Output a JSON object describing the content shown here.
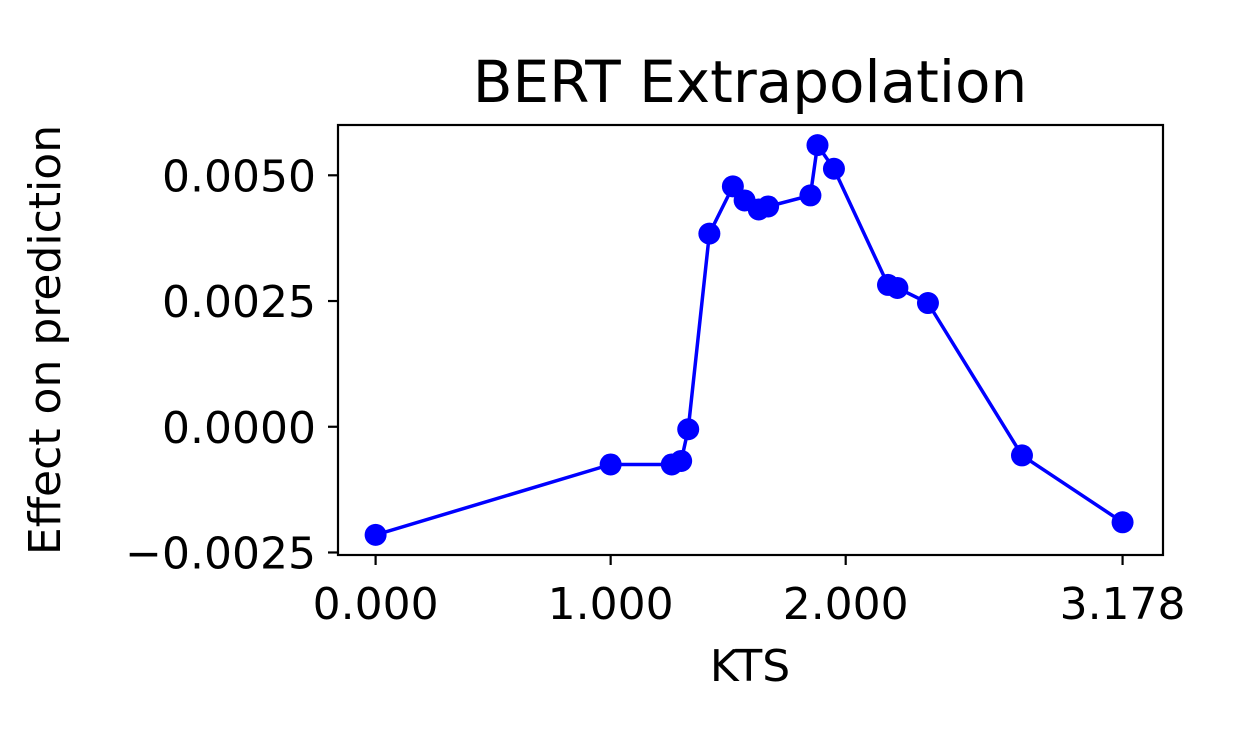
{
  "chart_data": {
    "type": "line",
    "title": "BERT Extrapolation",
    "xlabel": "KTS",
    "ylabel": "Effect on prediction",
    "xlim": [
      -0.16,
      3.35
    ],
    "ylim": [
      -0.00255,
      0.006
    ],
    "xticks": [
      0.0,
      1.0,
      2.0,
      3.178
    ],
    "xtick_labels": [
      "0.000",
      "1.000",
      "2.000",
      "3.178"
    ],
    "yticks": [
      -0.0025,
      0.0,
      0.0025,
      0.005
    ],
    "ytick_labels": [
      "−0.0025",
      "0.0000",
      "0.0025",
      "0.0050"
    ],
    "grid": false,
    "series": [
      {
        "color": "#0000ff",
        "marker": "circle",
        "x": [
          0.0,
          1.0,
          1.26,
          1.3,
          1.33,
          1.42,
          1.52,
          1.57,
          1.63,
          1.67,
          1.85,
          1.88,
          1.95,
          2.18,
          2.22,
          2.35,
          2.75,
          3.178
        ],
        "y": [
          -0.00215,
          -0.00075,
          -0.00075,
          -0.00068,
          -5e-05,
          0.00384,
          0.00478,
          0.0045,
          0.00432,
          0.00438,
          0.0046,
          0.0056,
          0.00513,
          0.00282,
          0.00276,
          0.00246,
          -0.00057,
          -0.0019
        ]
      }
    ]
  }
}
